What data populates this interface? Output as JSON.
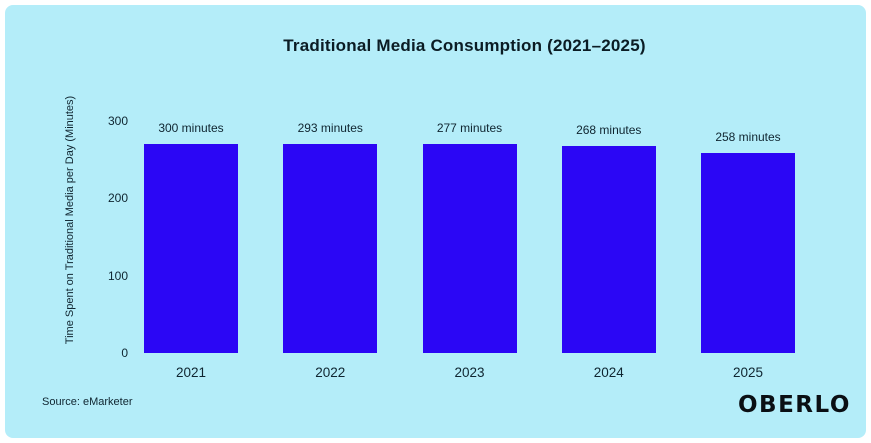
{
  "chart_data": {
    "type": "bar",
    "title": "Traditional Media Consumption (2021–2025)",
    "categories": [
      "2021",
      "2022",
      "2023",
      "2024",
      "2025"
    ],
    "values": [
      300,
      293,
      277,
      268,
      258
    ],
    "value_labels": [
      "300 minutes",
      "293 minutes",
      "277 minutes",
      "268 minutes",
      "258 minutes"
    ],
    "xlabel": "",
    "ylabel": "Time Spent on Traditional Media per Day (Minutes)",
    "yticks": [
      0,
      100,
      200,
      300
    ],
    "ylim": [
      0,
      300
    ],
    "grid": false,
    "legend": "none",
    "bar_color": "#2b06f5",
    "background_color": "#b4edf9",
    "text_color": "#0f2530"
  },
  "footer": {
    "source": "Source: eMarketer",
    "logo": "OBERLO"
  }
}
